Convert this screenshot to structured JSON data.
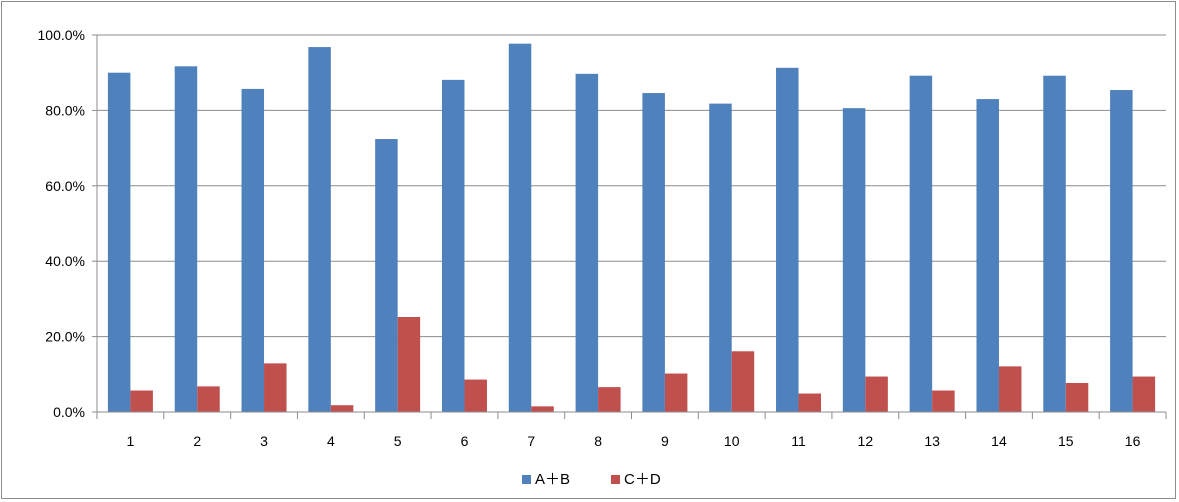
{
  "chart_data": {
    "type": "bar",
    "categories": [
      "1",
      "2",
      "3",
      "4",
      "5",
      "6",
      "7",
      "8",
      "9",
      "10",
      "11",
      "12",
      "13",
      "14",
      "15",
      "16"
    ],
    "series": [
      {
        "name": "A＋B",
        "color": "#4f81bd",
        "values": [
          90.0,
          91.7,
          85.7,
          96.8,
          72.4,
          88.1,
          97.7,
          89.7,
          84.6,
          81.8,
          91.3,
          80.6,
          89.2,
          83.0,
          89.2,
          85.4
        ]
      },
      {
        "name": "C＋D",
        "color": "#c0504d",
        "values": [
          5.7,
          6.8,
          12.9,
          1.8,
          25.2,
          8.6,
          1.5,
          6.6,
          10.2,
          16.1,
          4.9,
          9.4,
          5.7,
          12.1,
          7.7,
          9.4
        ]
      }
    ],
    "ylim": [
      0,
      100
    ],
    "yticks": [
      "0.0%",
      "20.0%",
      "40.0%",
      "60.0%",
      "80.0%",
      "100.0%"
    ],
    "grid": true,
    "legend": "bottom",
    "title": "",
    "xlabel": "",
    "ylabel": ""
  }
}
